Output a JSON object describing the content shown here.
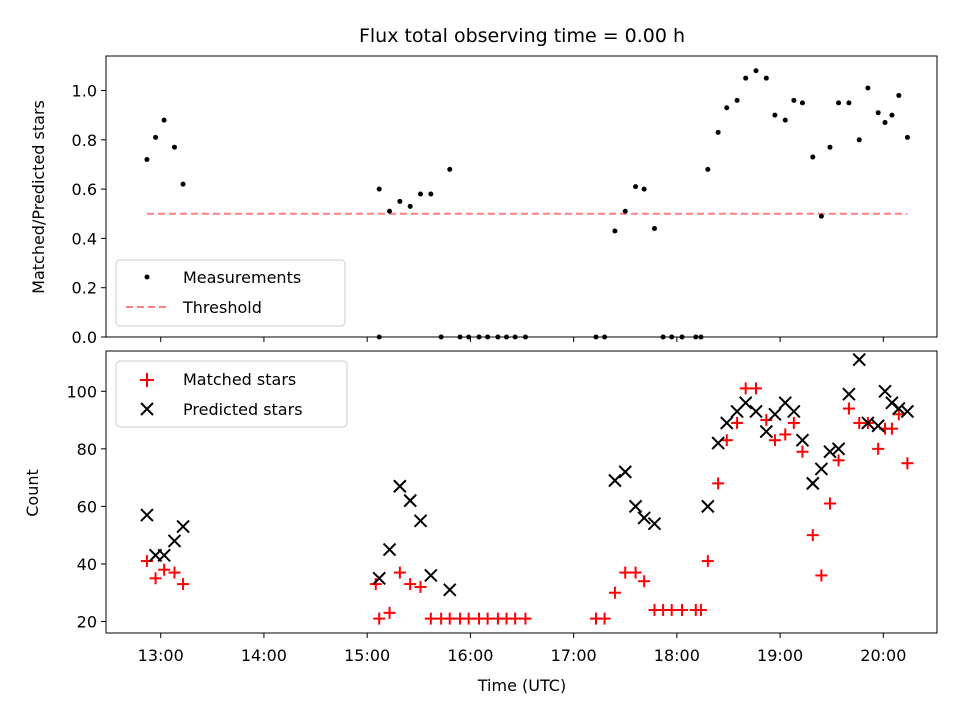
{
  "chart_data": [
    {
      "type": "scatter",
      "title": "Flux total observing time = 0.00 h",
      "xlabel": "",
      "ylabel": "Matched/Predicted stars",
      "xlim_hours": [
        12.47,
        20.52
      ],
      "ylim": [
        0,
        1.14
      ],
      "yticks": [
        0.0,
        0.2,
        0.4,
        0.6,
        0.8,
        1.0
      ],
      "ytick_labels": [
        "0.0",
        "0.2",
        "0.4",
        "0.6",
        "0.8",
        "1.0"
      ],
      "legend": {
        "placement": "lower-left",
        "entries": [
          "Measurements",
          "Threshold"
        ]
      },
      "series": [
        {
          "name": "Measurements",
          "marker": "dot",
          "color": "#000000",
          "points": [
            [
              "12:52",
              0.72
            ],
            [
              "12:57",
              0.81
            ],
            [
              "13:02",
              0.88
            ],
            [
              "13:08",
              0.77
            ],
            [
              "13:13",
              0.62
            ],
            [
              "15:07",
              0.0
            ],
            [
              "15:07",
              0.6
            ],
            [
              "15:13",
              0.51
            ],
            [
              "15:19",
              0.55
            ],
            [
              "15:25",
              0.53
            ],
            [
              "15:31",
              0.58
            ],
            [
              "15:37",
              0.58
            ],
            [
              "15:43",
              0.0
            ],
            [
              "15:48",
              0.68
            ],
            [
              "15:54",
              0.0
            ],
            [
              "15:59",
              0.0
            ],
            [
              "16:05",
              0.0
            ],
            [
              "16:10",
              0.0
            ],
            [
              "16:16",
              0.0
            ],
            [
              "16:21",
              0.0
            ],
            [
              "16:26",
              0.0
            ],
            [
              "16:32",
              0.0
            ],
            [
              "17:13",
              0.0
            ],
            [
              "17:18",
              0.0
            ],
            [
              "17:24",
              0.43
            ],
            [
              "17:30",
              0.51
            ],
            [
              "17:36",
              0.61
            ],
            [
              "17:41",
              0.6
            ],
            [
              "17:47",
              0.44
            ],
            [
              "17:52",
              0.0
            ],
            [
              "17:57",
              0.0
            ],
            [
              "18:03",
              0.0
            ],
            [
              "18:11",
              0.0
            ],
            [
              "18:14",
              0.0
            ],
            [
              "18:18",
              0.68
            ],
            [
              "18:24",
              0.83
            ],
            [
              "18:29",
              0.93
            ],
            [
              "18:35",
              0.96
            ],
            [
              "18:40",
              1.05
            ],
            [
              "18:46",
              1.08
            ],
            [
              "18:52",
              1.05
            ],
            [
              "18:57",
              0.9
            ],
            [
              "19:03",
              0.88
            ],
            [
              "19:08",
              0.96
            ],
            [
              "19:13",
              0.95
            ],
            [
              "19:19",
              0.73
            ],
            [
              "19:24",
              0.49
            ],
            [
              "19:29",
              0.77
            ],
            [
              "19:34",
              0.95
            ],
            [
              "19:40",
              0.95
            ],
            [
              "19:46",
              0.8
            ],
            [
              "19:51",
              1.01
            ],
            [
              "19:57",
              0.91
            ],
            [
              "20:01",
              0.87
            ],
            [
              "20:05",
              0.9
            ],
            [
              "20:09",
              0.98
            ],
            [
              "20:14",
              0.81
            ]
          ]
        },
        {
          "name": "Threshold",
          "style": "dashed",
          "color": "#ff7f7f",
          "points": [
            [
              "12:52",
              0.5
            ],
            [
              "20:14",
              0.5
            ]
          ]
        }
      ]
    },
    {
      "type": "scatter",
      "title": "",
      "xlabel": "Time (UTC)",
      "ylabel": "Count",
      "xlim_hours": [
        12.47,
        20.52
      ],
      "ylim": [
        16,
        114
      ],
      "yticks": [
        20,
        40,
        60,
        80,
        100
      ],
      "ytick_labels": [
        "20",
        "40",
        "60",
        "80",
        "100"
      ],
      "xticks_hours": [
        13,
        14,
        15,
        16,
        17,
        18,
        19,
        20
      ],
      "xtick_labels": [
        "13:00",
        "14:00",
        "15:00",
        "16:00",
        "17:00",
        "18:00",
        "19:00",
        "20:00"
      ],
      "legend": {
        "placement": "upper-left",
        "entries": [
          "Matched stars",
          "Predicted stars"
        ]
      },
      "series": [
        {
          "name": "Matched stars",
          "marker": "plus",
          "color": "#ff0000",
          "points": [
            [
              "12:52",
              41
            ],
            [
              "12:57",
              35
            ],
            [
              "13:02",
              38
            ],
            [
              "13:08",
              37
            ],
            [
              "13:13",
              33
            ],
            [
              "15:05",
              33
            ],
            [
              "15:07",
              21
            ],
            [
              "15:13",
              23
            ],
            [
              "15:19",
              37
            ],
            [
              "15:25",
              33
            ],
            [
              "15:31",
              32
            ],
            [
              "15:37",
              21
            ],
            [
              "15:43",
              21
            ],
            [
              "15:48",
              21
            ],
            [
              "15:54",
              21
            ],
            [
              "15:59",
              21
            ],
            [
              "16:05",
              21
            ],
            [
              "16:10",
              21
            ],
            [
              "16:16",
              21
            ],
            [
              "16:21",
              21
            ],
            [
              "16:26",
              21
            ],
            [
              "16:32",
              21
            ],
            [
              "17:13",
              21
            ],
            [
              "17:18",
              21
            ],
            [
              "17:24",
              30
            ],
            [
              "17:30",
              37
            ],
            [
              "17:36",
              37
            ],
            [
              "17:41",
              34
            ],
            [
              "17:47",
              24
            ],
            [
              "17:52",
              24
            ],
            [
              "17:57",
              24
            ],
            [
              "18:03",
              24
            ],
            [
              "18:11",
              24
            ],
            [
              "18:14",
              24
            ],
            [
              "18:18",
              41
            ],
            [
              "18:24",
              68
            ],
            [
              "18:29",
              83
            ],
            [
              "18:35",
              89
            ],
            [
              "18:40",
              101
            ],
            [
              "18:46",
              101
            ],
            [
              "18:52",
              90
            ],
            [
              "18:57",
              83
            ],
            [
              "19:03",
              85
            ],
            [
              "19:08",
              89
            ],
            [
              "19:13",
              79
            ],
            [
              "19:19",
              50
            ],
            [
              "19:24",
              36
            ],
            [
              "19:29",
              61
            ],
            [
              "19:34",
              76
            ],
            [
              "19:40",
              94
            ],
            [
              "19:46",
              89
            ],
            [
              "19:51",
              89
            ],
            [
              "19:57",
              80
            ],
            [
              "20:01",
              87
            ],
            [
              "20:05",
              87
            ],
            [
              "20:09",
              92
            ],
            [
              "20:14",
              75
            ]
          ]
        },
        {
          "name": "Predicted stars",
          "marker": "x",
          "color": "#000000",
          "points": [
            [
              "12:52",
              57
            ],
            [
              "12:57",
              43
            ],
            [
              "13:02",
              43
            ],
            [
              "13:08",
              48
            ],
            [
              "13:13",
              53
            ],
            [
              "15:07",
              35
            ],
            [
              "15:13",
              45
            ],
            [
              "15:19",
              67
            ],
            [
              "15:25",
              62
            ],
            [
              "15:31",
              55
            ],
            [
              "15:37",
              36
            ],
            [
              "15:48",
              31
            ],
            [
              "17:24",
              69
            ],
            [
              "17:30",
              72
            ],
            [
              "17:36",
              60
            ],
            [
              "17:41",
              56
            ],
            [
              "17:47",
              54
            ],
            [
              "18:18",
              60
            ],
            [
              "18:24",
              82
            ],
            [
              "18:29",
              89
            ],
            [
              "18:35",
              93
            ],
            [
              "18:40",
              96
            ],
            [
              "18:46",
              93
            ],
            [
              "18:52",
              86
            ],
            [
              "18:57",
              92
            ],
            [
              "19:03",
              96
            ],
            [
              "19:08",
              93
            ],
            [
              "19:13",
              83
            ],
            [
              "19:19",
              68
            ],
            [
              "19:24",
              73
            ],
            [
              "19:29",
              79
            ],
            [
              "19:34",
              80
            ],
            [
              "19:40",
              99
            ],
            [
              "19:46",
              111
            ],
            [
              "19:51",
              89
            ],
            [
              "19:57",
              88
            ],
            [
              "20:01",
              100
            ],
            [
              "20:05",
              96
            ],
            [
              "20:09",
              94
            ],
            [
              "20:14",
              93
            ]
          ]
        }
      ]
    }
  ]
}
